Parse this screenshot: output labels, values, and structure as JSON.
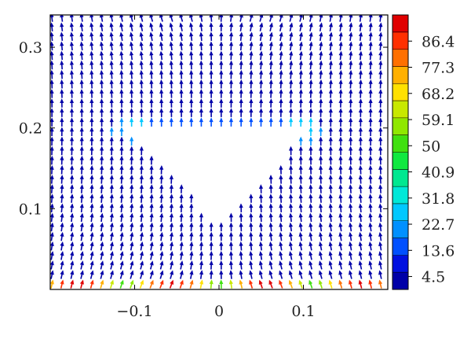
{
  "chart_data": {
    "type": "vector_field",
    "title": "",
    "xlabel": "",
    "ylabel": "",
    "xlim": [
      -0.2,
      0.2
    ],
    "ylim": [
      0.0,
      0.34
    ],
    "x_ticks": [
      {
        "value": -0.1,
        "label": "−0.1"
      },
      {
        "value": 0,
        "label": "0"
      },
      {
        "value": 0.1,
        "label": "0.1"
      }
    ],
    "y_ticks": [
      {
        "value": 0.1,
        "label": "0.1"
      },
      {
        "value": 0.2,
        "label": "0.2"
      },
      {
        "value": 0.3,
        "label": "0.3"
      }
    ],
    "obstacle": {
      "shape": "inverted-triangle",
      "vertices": [
        [
          -0.1,
          0.196
        ],
        [
          0.1,
          0.196
        ],
        [
          0.0,
          0.082
        ]
      ]
    },
    "colorbar": {
      "labels": [
        "86.4",
        "77.3",
        "68.2",
        "59.1",
        "50",
        "40.9",
        "31.8",
        "22.7",
        "13.6",
        "4.5"
      ],
      "min": 0,
      "max": 95.5,
      "colors": [
        "#0000a8",
        "#0010e0",
        "#0050ff",
        "#0090ff",
        "#00c8ff",
        "#00e8d8",
        "#00e890",
        "#10e840",
        "#40e010",
        "#90e800",
        "#c8e800",
        "#ffe000",
        "#ffb000",
        "#ff7000",
        "#ff3000",
        "#e00000"
      ]
    },
    "grid": false,
    "legend": "none"
  }
}
